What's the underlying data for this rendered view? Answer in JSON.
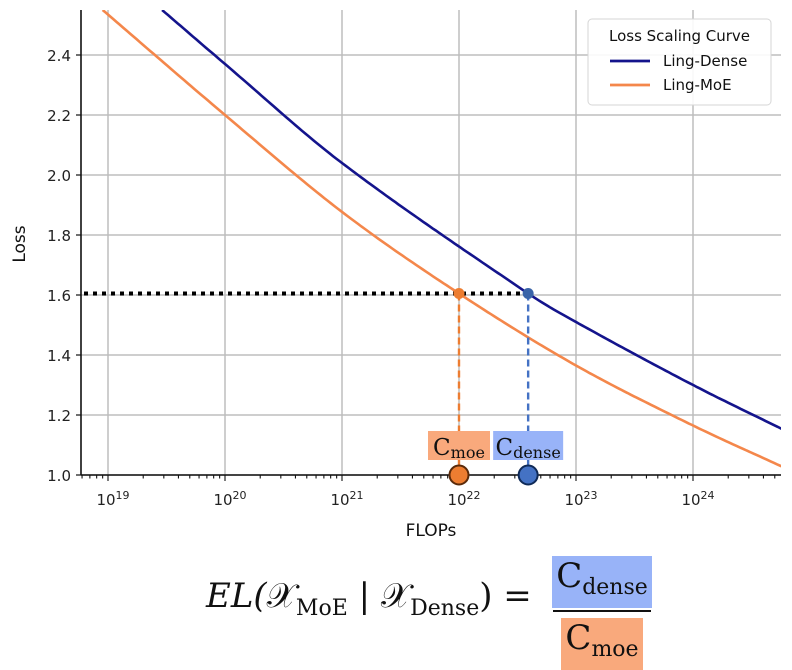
{
  "chart_data": {
    "type": "line",
    "title": "",
    "xlabel": "FLOPs",
    "ylabel": "Loss",
    "xscale": "log",
    "xlim": [
      6e+18,
      6e+24
    ],
    "ylim": [
      1.0,
      2.55
    ],
    "grid": true,
    "legend": {
      "title": "Loss Scaling Curve",
      "position": "upper right"
    },
    "x_ticks": [
      {
        "label": "10",
        "exp": "19",
        "value": 1e+19
      },
      {
        "label": "10",
        "exp": "20",
        "value": 1e+20
      },
      {
        "label": "10",
        "exp": "21",
        "value": 1e+21
      },
      {
        "label": "10",
        "exp": "22",
        "value": 1e+22
      },
      {
        "label": "10",
        "exp": "23",
        "value": 1e+23
      },
      {
        "label": "10",
        "exp": "24",
        "value": 1e+24
      }
    ],
    "y_ticks": [
      "1.0",
      "1.2",
      "1.4",
      "1.6",
      "1.8",
      "2.0",
      "2.2",
      "2.4"
    ],
    "series": [
      {
        "name": "Ling-Dense",
        "color": "#14148c",
        "x": [
          2.9e+19,
          1e+20,
          1e+21,
          3.9e+22,
          1e+23,
          1e+24,
          6e+24
        ],
        "y": [
          2.55,
          2.37,
          2.04,
          1.605,
          1.51,
          1.3,
          1.15
        ]
      },
      {
        "name": "Ling-MoE",
        "color": "#f4874b",
        "x": [
          9e+18,
          1e+20,
          1e+21,
          1e+22,
          1e+23,
          1e+24,
          6e+24
        ],
        "y": [
          2.55,
          2.2,
          1.877,
          1.605,
          1.365,
          1.165,
          1.025
        ]
      }
    ],
    "annotations": {
      "target_loss": 1.605,
      "c_moe": {
        "x": 1e+22,
        "label": "C",
        "sub": "moe",
        "color": "#ed7d31",
        "box_color": "#f9a97c"
      },
      "c_dense": {
        "x": 3.9e+22,
        "label": "C",
        "sub": "dense",
        "color": "#4472c4",
        "box_color": "#98b3f8"
      }
    }
  },
  "formula": {
    "lhs_prefix": "EL(",
    "x_symbol": "𝒳",
    "sub_moe": "MoE",
    "separator": " | ",
    "sub_dense": "Dense",
    "lhs_suffix": ") =",
    "num_symbol": "C",
    "num_sub": "dense",
    "den_symbol": "C",
    "den_sub": "moe"
  }
}
